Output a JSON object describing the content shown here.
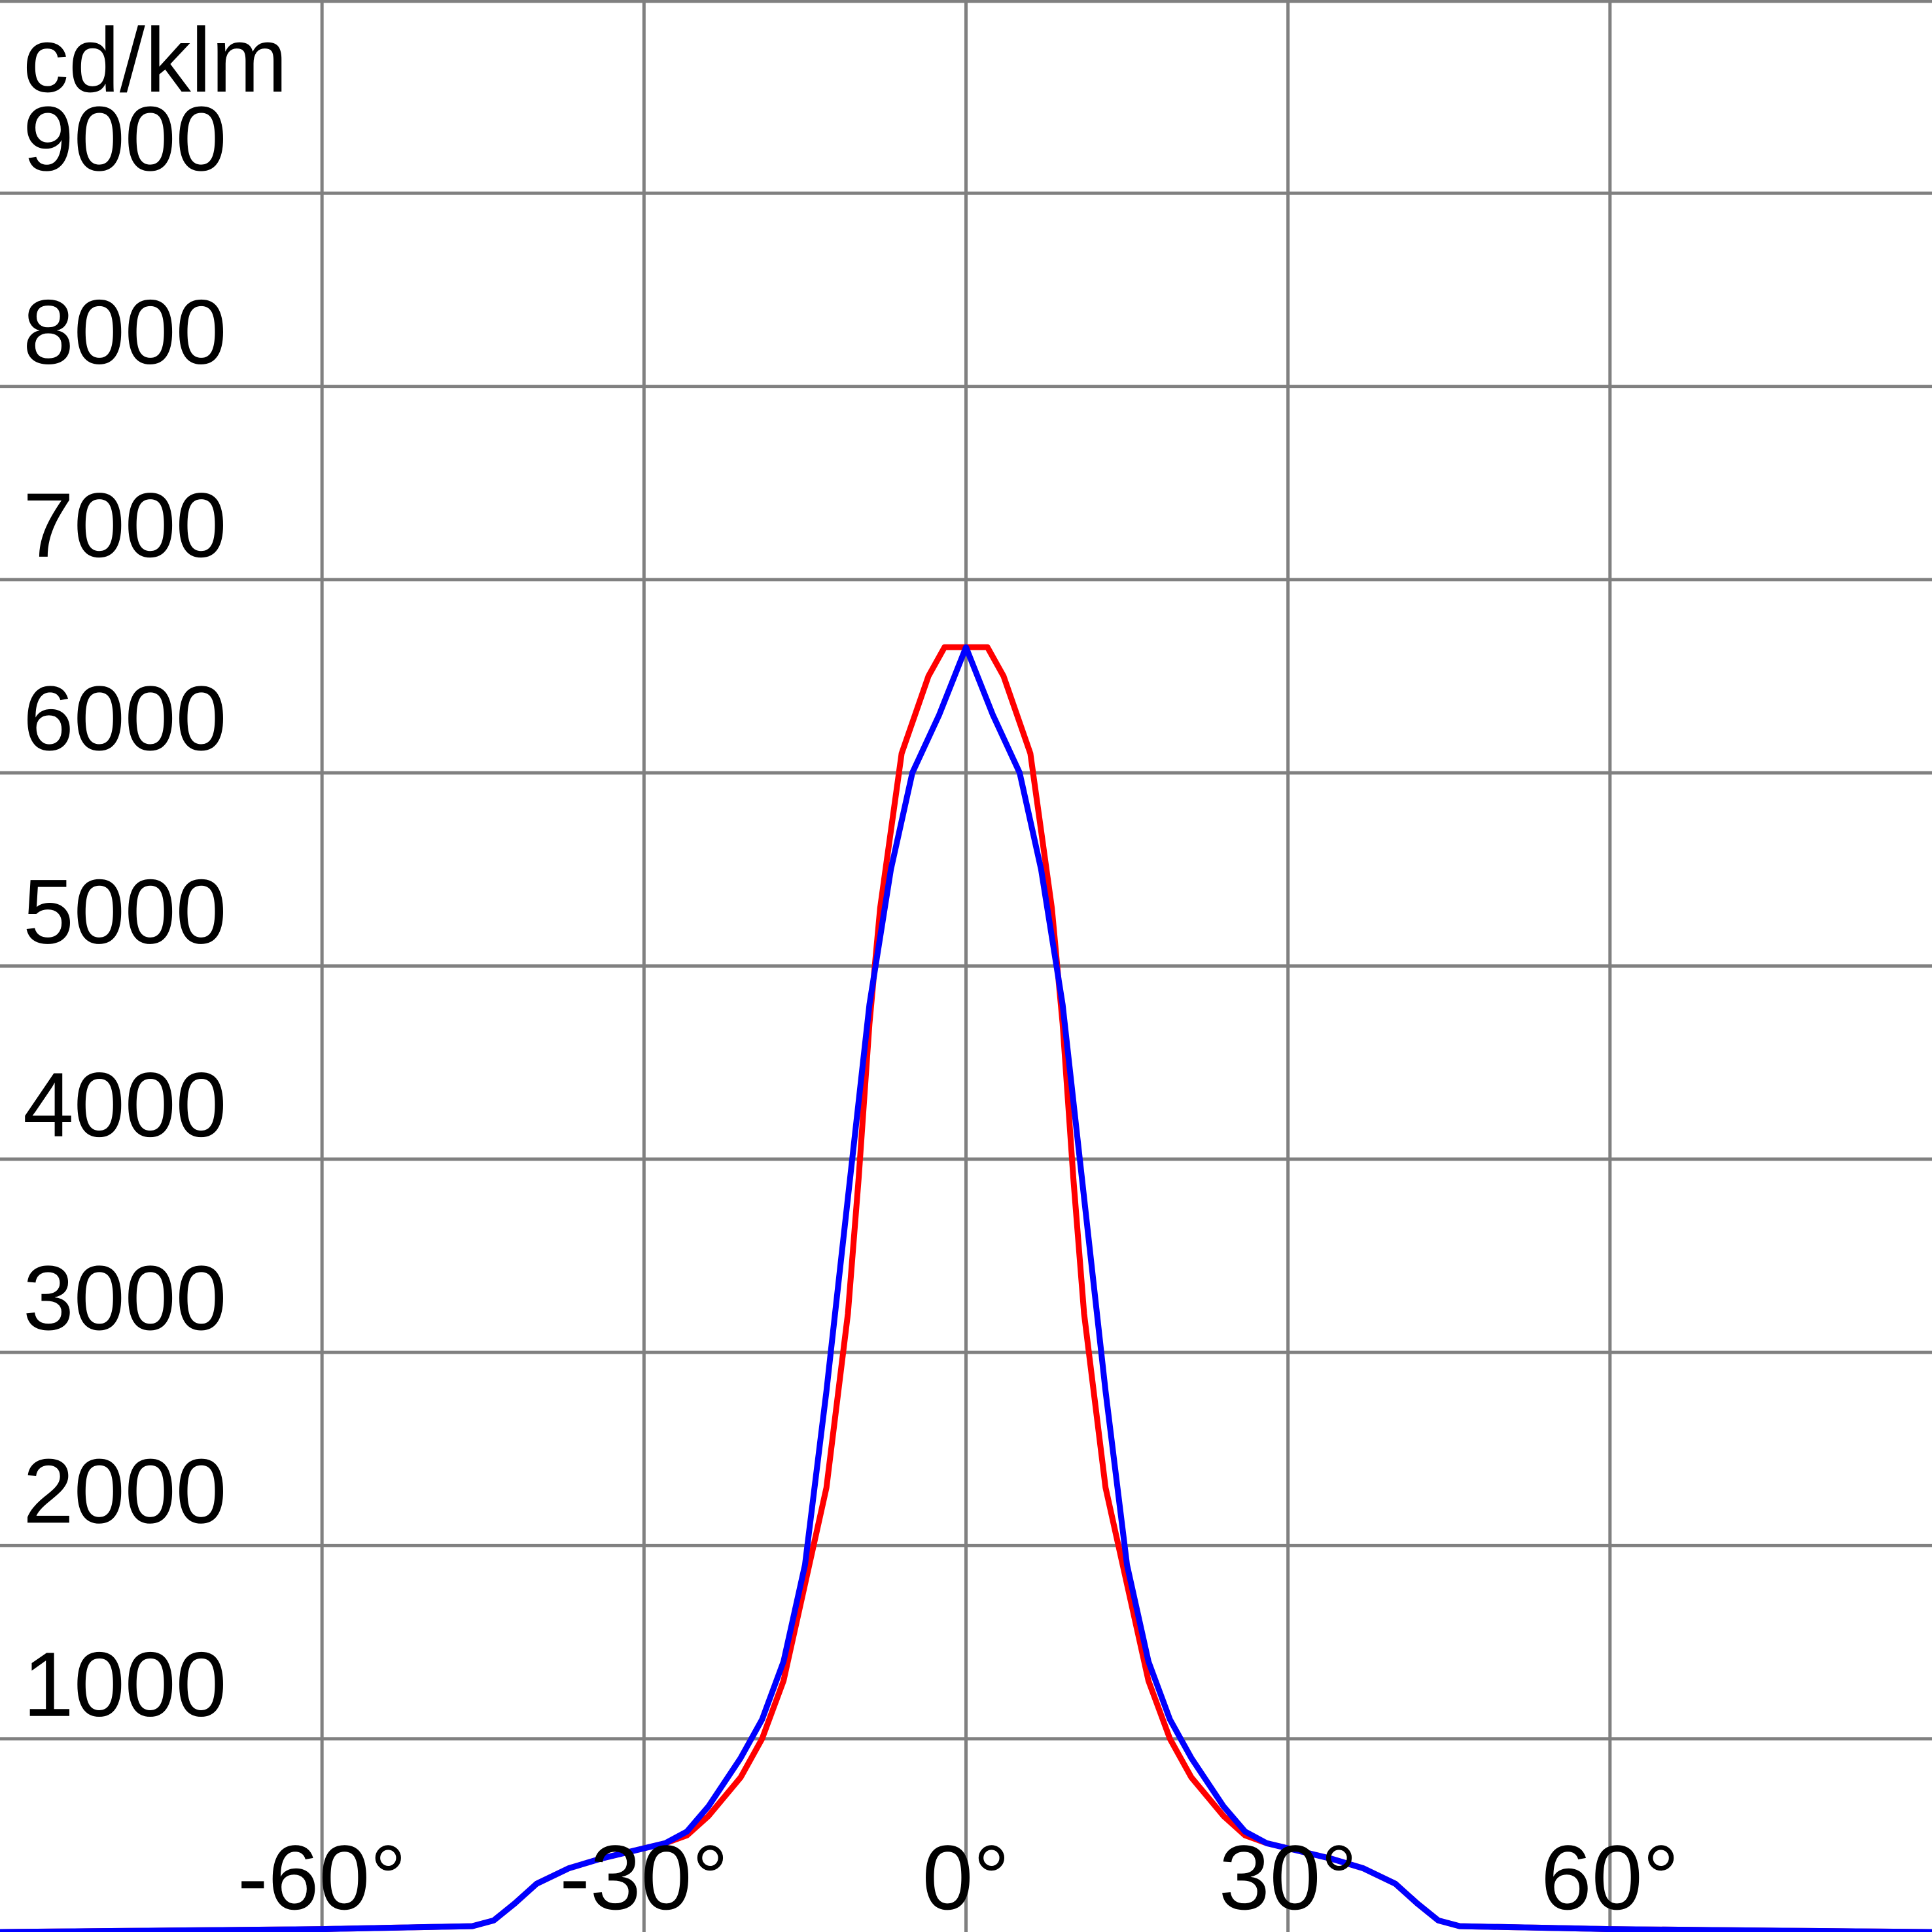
{
  "chart_data": {
    "type": "line",
    "title": "",
    "xlabel": "",
    "ylabel": "cd/klm",
    "xlim": [
      -90,
      90
    ],
    "ylim": [
      0,
      10000
    ],
    "x_ticks": [
      {
        "value": -60,
        "label": "-60°"
      },
      {
        "value": -30,
        "label": "-30°"
      },
      {
        "value": 0,
        "label": "0°"
      },
      {
        "value": 30,
        "label": "30°"
      },
      {
        "value": 60,
        "label": "60°"
      }
    ],
    "y_ticks": [
      {
        "value": 1000,
        "label": "1000"
      },
      {
        "value": 2000,
        "label": "2000"
      },
      {
        "value": 3000,
        "label": "3000"
      },
      {
        "value": 4000,
        "label": "4000"
      },
      {
        "value": 5000,
        "label": "5000"
      },
      {
        "value": 6000,
        "label": "6000"
      },
      {
        "value": 7000,
        "label": "7000"
      },
      {
        "value": 8000,
        "label": "8000"
      },
      {
        "value": 9000,
        "label": "9000"
      }
    ],
    "grid": true,
    "legend": "none",
    "series": [
      {
        "color": "#ff0000",
        "points": [
          [
            -90,
            0
          ],
          [
            -60,
            15
          ],
          [
            -46,
            30
          ],
          [
            -44,
            60
          ],
          [
            -42,
            150
          ],
          [
            -40,
            250
          ],
          [
            -37,
            330
          ],
          [
            -34,
            380
          ],
          [
            -31,
            420
          ],
          [
            -28,
            460
          ],
          [
            -26,
            500
          ],
          [
            -24,
            600
          ],
          [
            -21,
            800
          ],
          [
            -19,
            1000
          ],
          [
            -17,
            1300
          ],
          [
            -15,
            1800
          ],
          [
            -13,
            2300
          ],
          [
            -11,
            3200
          ],
          [
            -10,
            3900
          ],
          [
            -9,
            4700
          ],
          [
            -8,
            5300
          ],
          [
            -6,
            6100
          ],
          [
            -3.5,
            6500
          ],
          [
            -2,
            6650
          ],
          [
            0,
            6650
          ],
          [
            2,
            6650
          ],
          [
            3.5,
            6500
          ],
          [
            6,
            6100
          ],
          [
            8,
            5300
          ],
          [
            9,
            4700
          ],
          [
            10,
            3900
          ],
          [
            11,
            3200
          ],
          [
            13,
            2300
          ],
          [
            15,
            1800
          ],
          [
            17,
            1300
          ],
          [
            19,
            1000
          ],
          [
            21,
            800
          ],
          [
            24,
            600
          ],
          [
            26,
            500
          ],
          [
            28,
            460
          ],
          [
            31,
            420
          ],
          [
            34,
            380
          ],
          [
            37,
            330
          ],
          [
            40,
            250
          ],
          [
            42,
            150
          ],
          [
            44,
            60
          ],
          [
            46,
            30
          ],
          [
            60,
            15
          ],
          [
            90,
            0
          ]
        ]
      },
      {
        "color": "#0000ff",
        "points": [
          [
            -90,
            0
          ],
          [
            -60,
            15
          ],
          [
            -46,
            30
          ],
          [
            -44,
            60
          ],
          [
            -42,
            150
          ],
          [
            -40,
            250
          ],
          [
            -37,
            330
          ],
          [
            -34,
            380
          ],
          [
            -31,
            420
          ],
          [
            -28,
            460
          ],
          [
            -26,
            520
          ],
          [
            -24,
            650
          ],
          [
            -21,
            900
          ],
          [
            -19,
            1100
          ],
          [
            -17,
            1400
          ],
          [
            -15,
            1900
          ],
          [
            -13,
            2800
          ],
          [
            -11,
            3800
          ],
          [
            -9,
            4800
          ],
          [
            -7,
            5500
          ],
          [
            -5,
            6000
          ],
          [
            -2.5,
            6300
          ],
          [
            0,
            6650
          ],
          [
            2.5,
            6300
          ],
          [
            5,
            6000
          ],
          [
            7,
            5500
          ],
          [
            9,
            4800
          ],
          [
            11,
            3800
          ],
          [
            13,
            2800
          ],
          [
            15,
            1900
          ],
          [
            17,
            1400
          ],
          [
            19,
            1100
          ],
          [
            21,
            900
          ],
          [
            24,
            650
          ],
          [
            26,
            520
          ],
          [
            28,
            460
          ],
          [
            31,
            420
          ],
          [
            34,
            380
          ],
          [
            37,
            330
          ],
          [
            40,
            250
          ],
          [
            42,
            150
          ],
          [
            44,
            60
          ],
          [
            46,
            30
          ],
          [
            60,
            15
          ],
          [
            90,
            0
          ]
        ]
      }
    ]
  }
}
